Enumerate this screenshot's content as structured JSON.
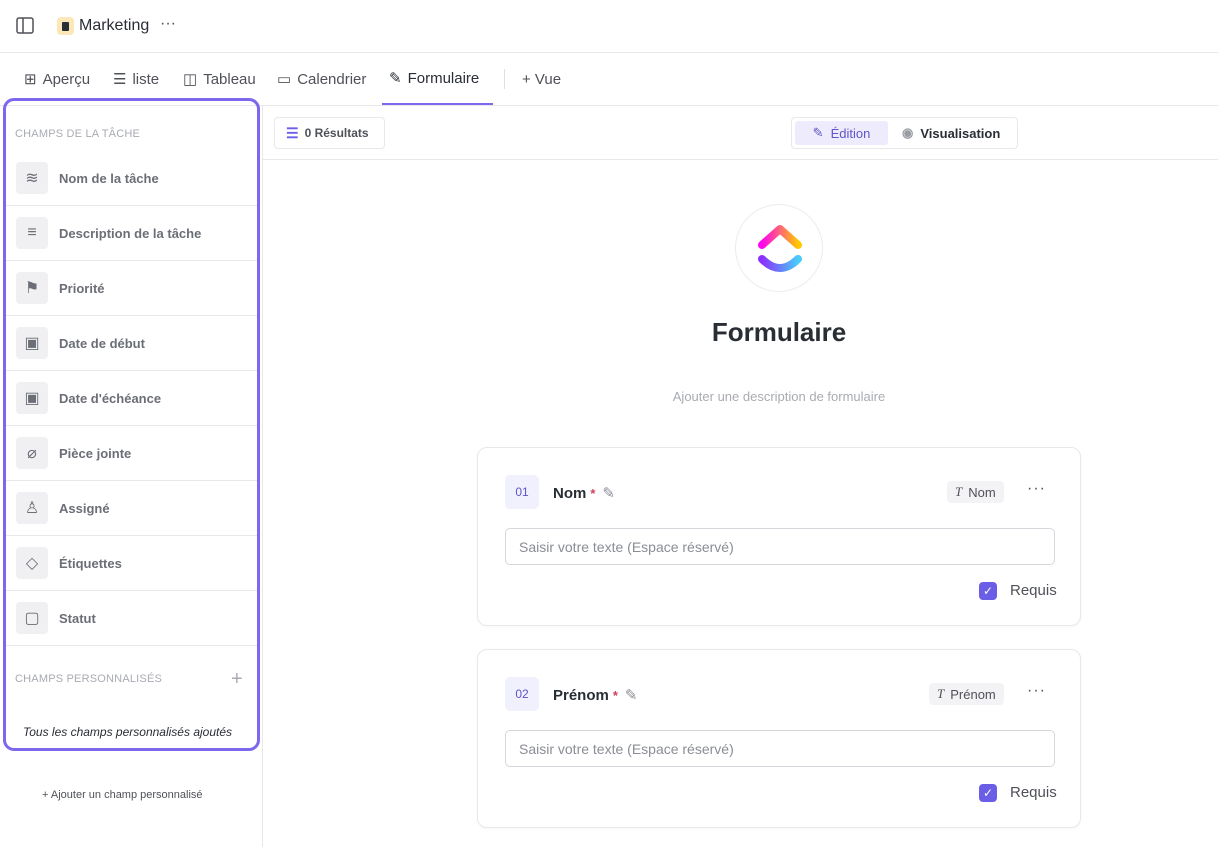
{
  "header": {
    "title": "Marketing",
    "more": "···"
  },
  "tabs": [
    {
      "label": "Aperçu",
      "icon": "grid-icon"
    },
    {
      "label": "liste",
      "icon": "list-icon"
    },
    {
      "label": "Tableau",
      "icon": "board-icon"
    },
    {
      "label": "Calendrier",
      "icon": "calendar-icon"
    },
    {
      "label": "Formulaire",
      "icon": "form-icon",
      "active": true
    },
    {
      "label": "+ Vue",
      "icon": "plus-icon"
    }
  ],
  "sidebar": {
    "task_fields_header": "CHAMPS DE LA TÂCHE",
    "items": [
      {
        "label": "Nom de la tâche",
        "icon": "layers-icon"
      },
      {
        "label": "Description de la tâche",
        "icon": "text-lines-icon"
      },
      {
        "label": "Priorité",
        "icon": "flag-icon"
      },
      {
        "label": "Date de début",
        "icon": "calendar-icon"
      },
      {
        "label": "Date d'échéance",
        "icon": "calendar-due-icon"
      },
      {
        "label": "Pièce jointe",
        "icon": "paperclip-icon"
      },
      {
        "label": "Assigné",
        "icon": "user-icon"
      },
      {
        "label": "Étiquettes",
        "icon": "tag-icon"
      },
      {
        "label": "Statut",
        "icon": "status-icon"
      }
    ],
    "custom_header": "CHAMPS PERSONNALISÉS",
    "custom_empty": "Tous les champs personnalisés ajoutés",
    "add_custom": "+ Ajouter un champ personnalisé"
  },
  "toolbar": {
    "results": "0 Résultats",
    "edit": "Édition",
    "preview": "Visualisation"
  },
  "form": {
    "title": "Formulaire",
    "description_placeholder": "Ajouter une description de formulaire",
    "fields": [
      {
        "num": "01",
        "name": "Nom",
        "required_mark": "*",
        "type": "Nom",
        "placeholder": "Saisir votre texte (Espace réservé)",
        "required_label": "Requis",
        "required": true
      },
      {
        "num": "02",
        "name": "Prénom",
        "required_mark": "*",
        "type": "Prénom",
        "placeholder": "Saisir votre texte (Espace réservé)",
        "required_label": "Requis",
        "required": true
      }
    ]
  },
  "colors": {
    "accent": "#7b68ee",
    "checkbox": "#6a5ee6"
  }
}
